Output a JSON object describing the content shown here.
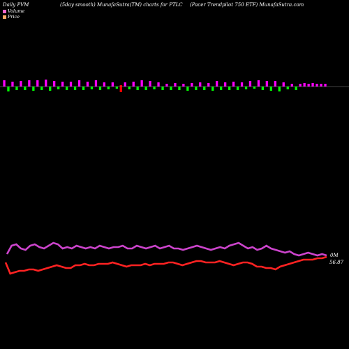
{
  "header": {
    "left": "Daily PVM",
    "center": "(5day smooth) MunafaSutra(TM) charts for PTLC",
    "right": "(Pacer Trendpilot 750  ETF) MunafaSutra.com"
  },
  "legend": [
    {
      "label": "Volume",
      "color": "#ff66cc"
    },
    {
      "label": "Price",
      "color": "#ffaa66"
    }
  ],
  "colors": {
    "volume_up": "#ff00ff",
    "volume_down": "#00ff00",
    "volume_big": "#ff0000",
    "pvm_line": "#cc44cc",
    "price_line": "#ff2222",
    "zero_line": "#888888"
  },
  "chart_data": {
    "type": "line",
    "volume": {
      "type": "bar",
      "values": [
        9,
        -7,
        7,
        -5,
        8,
        -5,
        9,
        -6,
        9,
        -5,
        10,
        -6,
        8,
        -4,
        7,
        -5,
        7,
        -5,
        9,
        -5,
        7,
        -4,
        9,
        -5,
        6,
        -4,
        6,
        -3,
        -6,
        6,
        -4,
        7,
        -5,
        9,
        -5,
        8,
        -4,
        6,
        -5,
        4,
        -5,
        5,
        -5,
        4,
        -6,
        5,
        -5,
        6,
        -5,
        5,
        -6,
        8,
        -5,
        6,
        -5,
        7,
        -5,
        6,
        -4,
        8,
        -3,
        9,
        -5,
        8,
        -6,
        8,
        -7,
        6,
        -4,
        4,
        -5,
        4,
        5,
        4,
        5,
        4,
        4,
        4
      ],
      "big_down_index": 28
    },
    "series": [
      {
        "values": [
          58,
          64,
          65,
          62,
          61,
          64,
          65,
          63,
          62,
          64,
          66,
          65,
          62,
          63,
          62,
          64,
          63,
          62,
          63,
          62,
          64,
          63,
          62,
          63,
          63,
          64,
          62,
          62,
          64,
          63,
          62,
          63,
          64,
          62,
          63,
          64,
          62,
          62,
          61,
          62,
          63,
          64,
          63,
          62,
          61,
          62,
          63,
          62,
          64,
          65,
          66,
          64,
          62,
          63,
          61,
          62,
          64,
          62,
          61,
          60,
          59,
          60,
          58,
          57,
          58,
          59,
          58,
          57,
          58,
          57
        ]
      },
      {
        "values": [
          52,
          44,
          45,
          46,
          46,
          47,
          47,
          46,
          47,
          48,
          49,
          50,
          49,
          48,
          48,
          50,
          50,
          51,
          50,
          50,
          51,
          51,
          51,
          52,
          51,
          50,
          49,
          50,
          50,
          50,
          51,
          50,
          51,
          51,
          51,
          52,
          52,
          51,
          50,
          51,
          52,
          53,
          53,
          52,
          52,
          52,
          53,
          52,
          51,
          50,
          51,
          52,
          52,
          51,
          49,
          49,
          48,
          48,
          47,
          49,
          50,
          51,
          52,
          53,
          54,
          54,
          54,
          55,
          55,
          56
        ]
      }
    ],
    "end_labels": [
      "0M",
      "56.87"
    ]
  }
}
